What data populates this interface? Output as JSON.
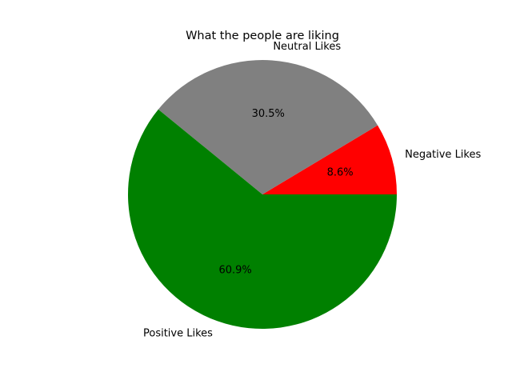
{
  "chart_data": {
    "type": "pie",
    "title": "What the people are liking",
    "slices": [
      {
        "label": "Negative Likes",
        "value": 8.6,
        "value_label": "8.6%",
        "color": "#ff0000"
      },
      {
        "label": "Neutral Likes",
        "value": 30.5,
        "value_label": "30.5%",
        "color": "#808080"
      },
      {
        "label": "Positive Likes",
        "value": 60.9,
        "value_label": "60.9%",
        "color": "#008000"
      }
    ],
    "start_angle_deg": 0,
    "direction": "counterclockwise",
    "legend": "none"
  }
}
